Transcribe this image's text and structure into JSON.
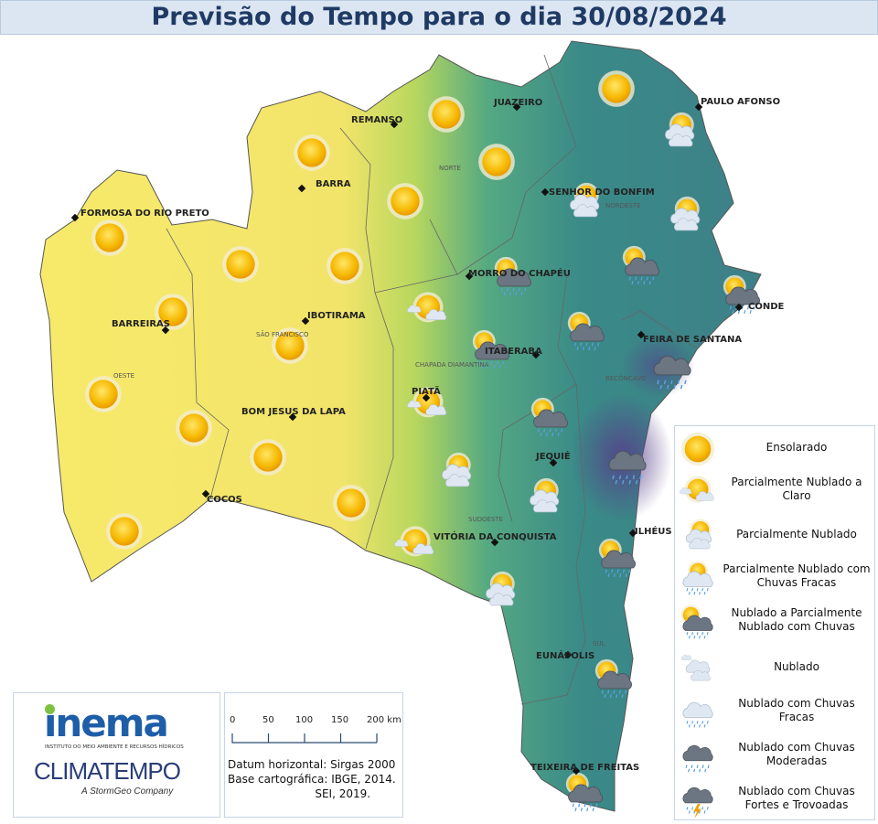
{
  "title": "Previsão do Tempo para o dia 30/08/2024",
  "cities": {
    "juazeiro": "JUAZEIRO",
    "paulo_afonso": "PAULO AFONSO",
    "remanso": "REMANSO",
    "barra": "BARRA",
    "senhor_do_bonfim": "SENHOR DO BONFIM",
    "formosa": "FORMOSA DO RIO PRETO",
    "morro_do_chapeu": "MORRO DO CHAPÉU",
    "conde": "CONDE",
    "ibotirama": "IBOTIRAMA",
    "barreiras": "BARREIRAS",
    "feira_de_santana": "FEIRA DE SANTANA",
    "itaberaba": "ITABERABA",
    "piata": "PIATÃ",
    "bom_jesus_da_lapa": "BOM JESUS DA LAPA",
    "jequie": "JEQUIÉ",
    "cocos": "COCOS",
    "vitoria_da_conquista": "VITÓRIA DA CONQUISTA",
    "ilheus": "ILHÉUS",
    "eunapolis": "EUNÁPOLIS",
    "teixeira_de_freitas": "TEIXEIRA DE FREITAS"
  },
  "regions": {
    "norte": "NORTE",
    "nordeste": "NORDESTE",
    "sao_francisco": "SÃO FRANCISCO",
    "oeste": "OESTE",
    "chapada": "CHAPADA DIAMANTINA",
    "reconcavo": "RECÔNCAVO",
    "sudoeste": "SUDOESTE",
    "sul": "SUL"
  },
  "legend": [
    {
      "icon": "sun-icon",
      "label": "Ensolarado"
    },
    {
      "icon": "sun-small-cloud-icon",
      "label": "Parcialmente Nublado a Claro"
    },
    {
      "icon": "partly-cloudy-icon",
      "label": "Parcialmente Nublado"
    },
    {
      "icon": "partly-cloudy-light-rain-icon",
      "label": "Parcialmente Nublado com Chuvas Fracas"
    },
    {
      "icon": "cloudy-sun-rain-icon",
      "label": "Nublado a Parcialmente Nublado com Chuvas"
    },
    {
      "icon": "cloudy-icon",
      "label": "Nublado"
    },
    {
      "icon": "cloudy-light-rain-icon",
      "label": "Nublado com Chuvas Fracas"
    },
    {
      "icon": "cloudy-moderate-rain-icon",
      "label": "Nublado com Chuvas Moderadas"
    },
    {
      "icon": "thunderstorm-icon",
      "label": "Nublado com Chuvas Fortes e Trovoadas"
    }
  ],
  "logos": {
    "inema": "inema",
    "inema_sub": "INSTITUTO DO MEIO AMBIENTE E RECURSOS HÍDRICOS",
    "climatempo": "CLIMATEMPO",
    "stormgeo": "A StormGeo Company"
  },
  "scale": {
    "ticks": [
      "0",
      "50",
      "100",
      "150",
      "200 km"
    ],
    "datum": "Datum horizontal: Sirgas 2000\nBase cartográfica: IBGE, 2014.\n                         SEI, 2019."
  },
  "colors": {
    "dry": "#f5e866",
    "mid": "#9fd15c",
    "wet": "#3e9487",
    "very_wet": "#5a3f8c",
    "title": "#1f3a64"
  }
}
